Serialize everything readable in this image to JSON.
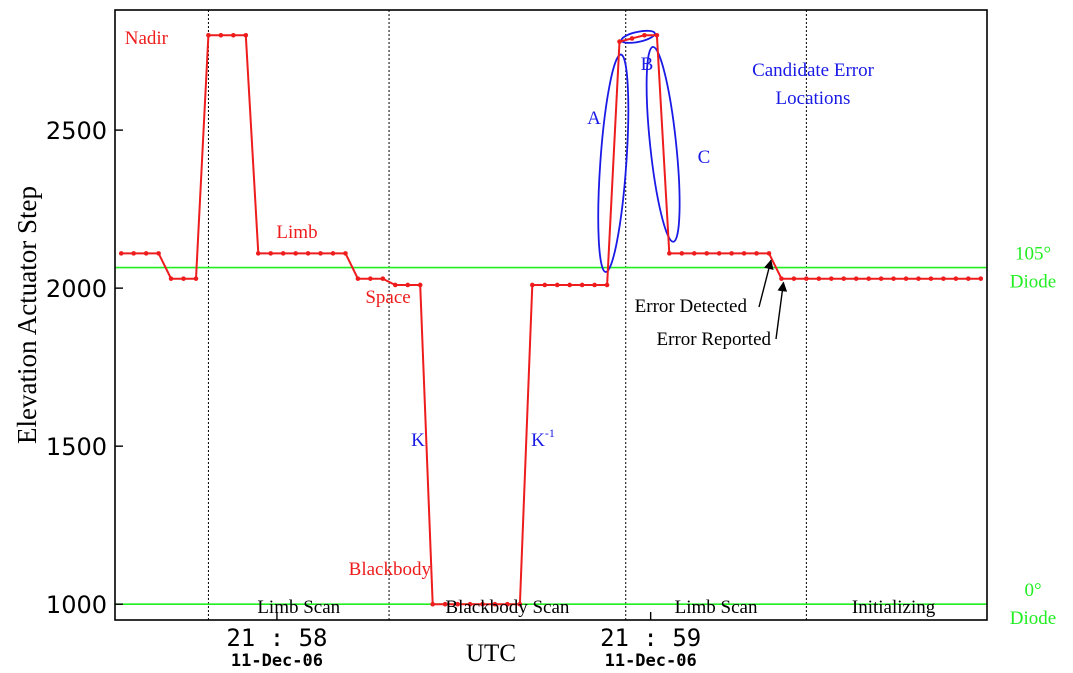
{
  "chart_data": {
    "type": "line",
    "title": "",
    "xlabel": "UTC",
    "ylabel": "Elevation Actuator Step",
    "ylim": [
      950,
      2880
    ],
    "grid": false,
    "y_ticks": [
      {
        "value": 1000,
        "label": "1000"
      },
      {
        "value": 1500,
        "label": "1500"
      },
      {
        "value": 2000,
        "label": "2000"
      },
      {
        "value": 2500,
        "label": "2500"
      }
    ],
    "x_ticks": [
      {
        "time": "21:58",
        "date": "11-Dec-06",
        "time_label": "21 : 58",
        "date_label": "11-Dec-06"
      },
      {
        "time": "21:59",
        "date": "11-Dec-06",
        "time_label": "21 : 59",
        "date_label": "11-Dec-06"
      }
    ],
    "series": [
      {
        "name": "",
        "color": "#ee1c1c",
        "points": [
          [
            "21:57:35",
            2110
          ],
          [
            "21:57:37",
            2110
          ],
          [
            "21:57:39",
            2110
          ],
          [
            "21:57:41",
            2110
          ],
          [
            "21:57:43",
            2030
          ],
          [
            "21:57:45",
            2030
          ],
          [
            "21:57:47",
            2030
          ],
          [
            "21:57:49",
            2800
          ],
          [
            "21:57:51",
            2800
          ],
          [
            "21:57:53",
            2800
          ],
          [
            "21:57:55",
            2800
          ],
          [
            "21:57:57",
            2110
          ],
          [
            "21:57:59",
            2110
          ],
          [
            "21:58:01",
            2110
          ],
          [
            "21:58:03",
            2110
          ],
          [
            "21:58:05",
            2110
          ],
          [
            "21:58:07",
            2110
          ],
          [
            "21:58:09",
            2110
          ],
          [
            "21:58:11",
            2110
          ],
          [
            "21:58:13",
            2030
          ],
          [
            "21:58:15",
            2030
          ],
          [
            "21:58:17",
            2030
          ],
          [
            "21:58:19",
            2010
          ],
          [
            "21:58:21",
            2010
          ],
          [
            "21:58:23",
            2010
          ],
          [
            "21:58:25",
            1000
          ],
          [
            "21:58:27",
            1000
          ],
          [
            "21:58:29",
            1000
          ],
          [
            "21:58:31",
            1000
          ],
          [
            "21:58:33",
            1000
          ],
          [
            "21:58:35",
            1000
          ],
          [
            "21:58:37",
            1000
          ],
          [
            "21:58:39",
            1000
          ],
          [
            "21:58:41",
            2010
          ],
          [
            "21:58:43",
            2010
          ],
          [
            "21:58:45",
            2010
          ],
          [
            "21:58:47",
            2010
          ],
          [
            "21:58:49",
            2010
          ],
          [
            "21:58:51",
            2010
          ],
          [
            "21:58:53",
            2010
          ],
          [
            "21:58:55",
            2780
          ],
          [
            "21:58:57",
            2790
          ],
          [
            "21:58:59",
            2800
          ],
          [
            "21:59:01",
            2800
          ],
          [
            "21:59:03",
            2110
          ],
          [
            "21:59:05",
            2110
          ],
          [
            "21:59:07",
            2110
          ],
          [
            "21:59:09",
            2110
          ],
          [
            "21:59:11",
            2110
          ],
          [
            "21:59:13",
            2110
          ],
          [
            "21:59:15",
            2110
          ],
          [
            "21:59:17",
            2110
          ],
          [
            "21:59:19",
            2110
          ],
          [
            "21:59:21",
            2030
          ],
          [
            "21:59:23",
            2030
          ],
          [
            "21:59:25",
            2030
          ],
          [
            "21:59:27",
            2030
          ],
          [
            "21:59:29",
            2030
          ],
          [
            "21:59:31",
            2030
          ],
          [
            "21:59:33",
            2030
          ],
          [
            "21:59:35",
            2030
          ],
          [
            "21:59:37",
            2030
          ],
          [
            "21:59:39",
            2030
          ],
          [
            "21:59:41",
            2030
          ],
          [
            "21:59:43",
            2030
          ],
          [
            "21:59:45",
            2030
          ],
          [
            "21:59:47",
            2030
          ],
          [
            "21:59:49",
            2030
          ],
          [
            "21:59:51",
            2030
          ],
          [
            "21:59:53",
            2030
          ]
        ]
      }
    ],
    "reference_lines": [
      {
        "value": 2065,
        "color": "#22ee22",
        "label_line1": "105°",
        "label_line2": "Diode"
      },
      {
        "value": 1000,
        "color": "#22ee22",
        "label_line1": "0°",
        "label_line2": "Diode"
      }
    ],
    "phase_dividers": [
      "21:57:49",
      "21:58:18",
      "21:58:56",
      "21:59:25"
    ],
    "phases": [
      {
        "label": "Limb Scan",
        "start": "21:57:49",
        "end": "21:58:18"
      },
      {
        "label": "Blackbody Scan",
        "start": "21:58:18",
        "end": "21:58:56"
      },
      {
        "label": "Limb Scan",
        "start": "21:58:56",
        "end": "21:59:25"
      },
      {
        "label": "Initializing",
        "start": "21:59:25",
        "end": "21:59:53"
      }
    ],
    "annotations": [
      {
        "text": "Nadir",
        "color": "#ee1c1c",
        "near": "21:57:49"
      },
      {
        "text": "Limb",
        "color": "#ee1c1c",
        "near": "21:58:01"
      },
      {
        "text": "Space",
        "color": "#ee1c1c",
        "near": "21:58:19"
      },
      {
        "text": "Blackbody",
        "color": "#ee1c1c",
        "near": "21:58:25"
      },
      {
        "text": "K",
        "color": "#1a1ae6",
        "near": "21:58:23"
      },
      {
        "text": "K",
        "superscript": "-1",
        "color": "#1a1ae6",
        "near": "21:58:41"
      },
      {
        "text": "A",
        "color": "#1a1ae6",
        "near": "21:58:54"
      },
      {
        "text": "B",
        "color": "#1a1ae6",
        "near": "21:58:58"
      },
      {
        "text": "C",
        "color": "#1a1ae6",
        "near": "21:59:03"
      },
      {
        "text": "Candidate Error",
        "color": "#1a1ae6"
      },
      {
        "text": "Locations",
        "color": "#1a1ae6"
      },
      {
        "text": "Error Detected",
        "color": "#000000",
        "points_to": "21:59:19"
      },
      {
        "text": "Error Reported",
        "color": "#000000",
        "points_to": "21:59:21"
      }
    ]
  }
}
